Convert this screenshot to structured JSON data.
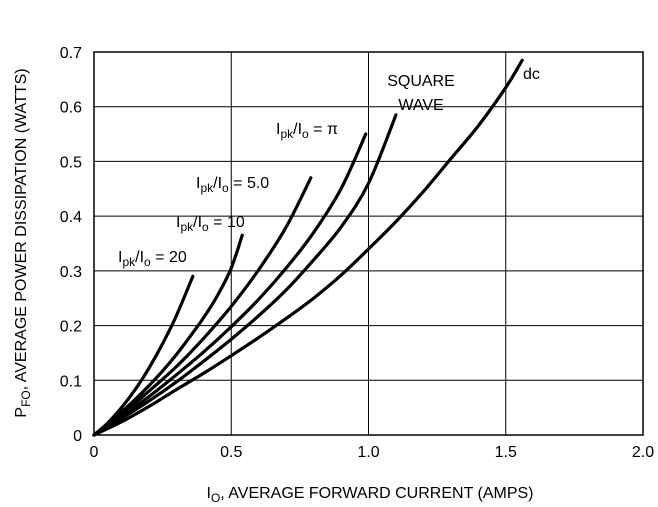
{
  "chart_data": {
    "type": "line",
    "xlabel": {
      "main": "I",
      "sub": "O",
      "rest": ", AVERAGE FORWARD CURRENT (AMPS)"
    },
    "ylabel": {
      "main": "P",
      "sub": "FO",
      "rest": ", AVERAGE POWER DISSIPATION (WATTS)"
    },
    "xlim": [
      0,
      2.0
    ],
    "ylim": [
      0,
      0.7
    ],
    "xticks": [
      "0",
      "0.5",
      "1.0",
      "1.5",
      "2.0"
    ],
    "yticks": [
      "0",
      "0.1",
      "0.2",
      "0.3",
      "0.4",
      "0.5",
      "0.6",
      "0.7"
    ],
    "grid": true,
    "series": [
      {
        "id": "ratio-20",
        "label_parts": [
          "I",
          "pk",
          "/I",
          "o",
          " = 20"
        ],
        "x": [
          0,
          0.05,
          0.1,
          0.15,
          0.2,
          0.25,
          0.3,
          0.36
        ],
        "y": [
          0,
          0.022,
          0.05,
          0.083,
          0.122,
          0.167,
          0.218,
          0.29
        ]
      },
      {
        "id": "ratio-10",
        "label_parts": [
          "I",
          "pk",
          "/I",
          "o",
          " = 10"
        ],
        "x": [
          0,
          0.05,
          0.1,
          0.15,
          0.2,
          0.25,
          0.3,
          0.35,
          0.4,
          0.45,
          0.5,
          0.54
        ],
        "y": [
          0,
          0.02,
          0.042,
          0.065,
          0.09,
          0.117,
          0.147,
          0.18,
          0.215,
          0.255,
          0.305,
          0.365
        ]
      },
      {
        "id": "ratio-5",
        "label_parts": [
          "I",
          "pk",
          "/I",
          "o",
          " = 5.0"
        ],
        "x": [
          0,
          0.1,
          0.2,
          0.3,
          0.4,
          0.5,
          0.6,
          0.7,
          0.79
        ],
        "y": [
          0,
          0.037,
          0.08,
          0.125,
          0.177,
          0.235,
          0.302,
          0.38,
          0.47
        ]
      },
      {
        "id": "ratio-pi",
        "label_parts": [
          "I",
          "pk",
          "/I",
          "o",
          " = π"
        ],
        "x": [
          0,
          0.1,
          0.2,
          0.3,
          0.4,
          0.5,
          0.6,
          0.7,
          0.8,
          0.9,
          0.99
        ],
        "y": [
          0,
          0.033,
          0.07,
          0.11,
          0.152,
          0.198,
          0.248,
          0.305,
          0.37,
          0.45,
          0.55
        ]
      },
      {
        "id": "square-wave",
        "label_lines": [
          "SQUARE",
          "WAVE"
        ],
        "x": [
          0,
          0.1,
          0.2,
          0.3,
          0.4,
          0.5,
          0.6,
          0.7,
          0.8,
          0.9,
          1.0,
          1.1
        ],
        "y": [
          0,
          0.03,
          0.062,
          0.097,
          0.135,
          0.175,
          0.218,
          0.265,
          0.32,
          0.38,
          0.46,
          0.585
        ]
      },
      {
        "id": "dc",
        "label": "dc",
        "x": [
          0,
          0.1,
          0.2,
          0.3,
          0.4,
          0.5,
          0.6,
          0.7,
          0.8,
          0.9,
          1.0,
          1.1,
          1.2,
          1.3,
          1.4,
          1.5,
          1.56
        ],
        "y": [
          0,
          0.024,
          0.052,
          0.083,
          0.113,
          0.145,
          0.178,
          0.213,
          0.25,
          0.292,
          0.34,
          0.39,
          0.445,
          0.505,
          0.565,
          0.635,
          0.685
        ]
      }
    ]
  }
}
